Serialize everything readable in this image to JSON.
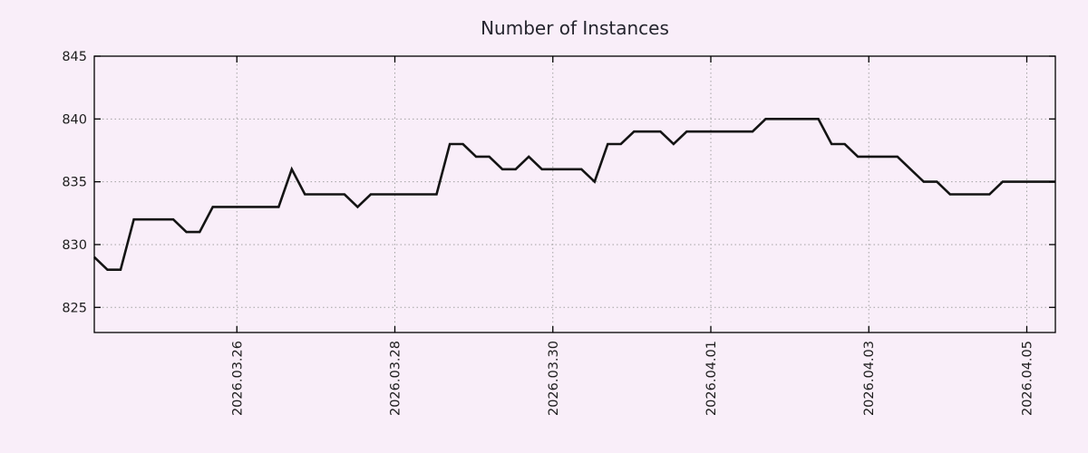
{
  "colors": {
    "background": "#f9eef9",
    "line": "#141414",
    "grid": "#a3a3a3",
    "border": "#000000",
    "text": "#1e1e1e",
    "title_text": "#25252e"
  },
  "chart_data": {
    "type": "line",
    "title": "Number of Instances",
    "xlabel": "",
    "ylabel": "",
    "legend_position": "none",
    "grid": {
      "horizontal": true,
      "vertical": true,
      "style": "dotted"
    },
    "y_ticks": [
      825,
      830,
      835,
      840,
      845
    ],
    "ylim": [
      823,
      845
    ],
    "x_tick_labels": [
      "2026.03.26",
      "2026.03.28",
      "2026.03.30",
      "2026.04.01",
      "2026.04.03",
      "2026.04.05"
    ],
    "x_tick_indices": [
      10.83,
      22.83,
      34.83,
      46.83,
      58.83,
      70.83
    ],
    "x_tick_rotation_deg": -90,
    "series": [
      {
        "name": "Number of Instances",
        "values": [
          829,
          828,
          828,
          832,
          832,
          832,
          832,
          831,
          831,
          833,
          833,
          833,
          833,
          833,
          833,
          836,
          834,
          834,
          834,
          834,
          833,
          834,
          834,
          834,
          834,
          834,
          834,
          838,
          838,
          837,
          837,
          836,
          836,
          837,
          836,
          836,
          836,
          836,
          835,
          838,
          838,
          839,
          839,
          839,
          838,
          839,
          839,
          839,
          839,
          839,
          839,
          840,
          840,
          840,
          840,
          840,
          838,
          838,
          837,
          837,
          837,
          837,
          836,
          835,
          835,
          834,
          834,
          834,
          834,
          835,
          835,
          835,
          835,
          835
        ]
      }
    ]
  }
}
